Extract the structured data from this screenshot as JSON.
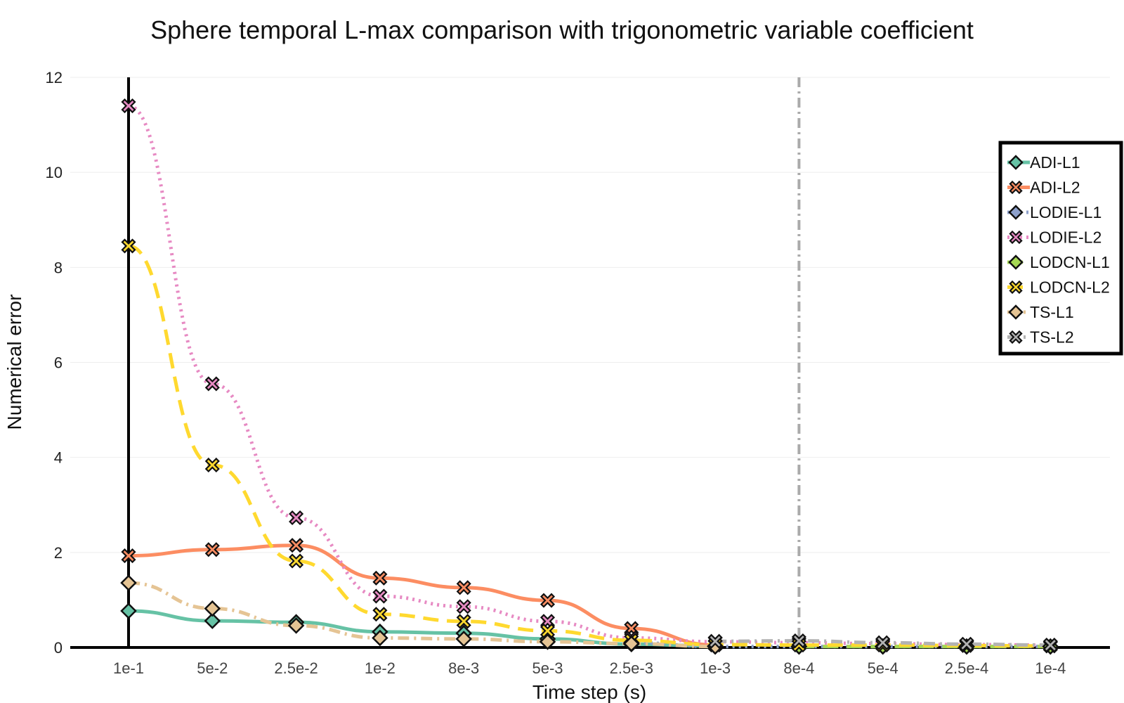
{
  "chart_data": {
    "type": "line",
    "title": "Sphere temporal L-max comparison with trigonometric variable coefficient",
    "xlabel": "Time step (s)",
    "ylabel": "Numerical error",
    "categories": [
      "1e-1",
      "5e-2",
      "2.5e-2",
      "1e-2",
      "8e-3",
      "5e-3",
      "2.5e-3",
      "1e-3",
      "8e-4",
      "5e-4",
      "2.5e-4",
      "1e-4"
    ],
    "ylim": [
      0,
      12
    ],
    "yticks": [
      "0",
      "2",
      "4",
      "6",
      "8",
      "10",
      "12"
    ],
    "grid": true,
    "legend_position": "top-right",
    "vline_category": "8e-4",
    "series": [
      {
        "name": "ADI-L1",
        "color": "#66c2a5",
        "dash": "solid",
        "marker": "diamond",
        "values": [
          0.77,
          0.56,
          0.53,
          0.33,
          0.3,
          0.18,
          0.07,
          0.03,
          null,
          null,
          null,
          null
        ]
      },
      {
        "name": "ADI-L2",
        "color": "#fc8d62",
        "dash": "solid",
        "marker": "x",
        "values": [
          1.93,
          2.06,
          2.15,
          1.46,
          1.26,
          0.99,
          0.4,
          0.05,
          null,
          null,
          null,
          null
        ]
      },
      {
        "name": "LODIE-L1",
        "color": "#8da0cb",
        "dash": "dot",
        "marker": "diamond",
        "values": [
          null,
          null,
          null,
          null,
          null,
          null,
          0.1,
          0.02,
          0.02,
          0.02,
          0.02,
          0.02
        ]
      },
      {
        "name": "LODIE-L2",
        "color": "#e78ac3",
        "dash": "dot",
        "marker": "x",
        "values": [
          11.4,
          5.55,
          2.73,
          1.08,
          0.86,
          0.55,
          0.2,
          0.12,
          0.1,
          0.08,
          0.06,
          0.05
        ]
      },
      {
        "name": "LODCN-L1",
        "color": "#a6d854",
        "dash": "dash",
        "marker": "diamond",
        "values": [
          null,
          null,
          null,
          null,
          null,
          null,
          null,
          null,
          0.02,
          0.02,
          0.02,
          0.02
        ]
      },
      {
        "name": "LODCN-L2",
        "color": "#ffd92f",
        "dash": "dash",
        "marker": "x",
        "values": [
          8.45,
          3.84,
          1.82,
          0.7,
          0.55,
          0.35,
          0.15,
          0.06,
          0.05,
          0.05,
          0.04,
          0.03
        ]
      },
      {
        "name": "TS-L1",
        "color": "#e5c494",
        "dash": "dashdot",
        "marker": "diamond",
        "values": [
          1.36,
          0.82,
          0.46,
          0.2,
          0.18,
          0.12,
          0.08,
          0.02,
          null,
          null,
          null,
          null
        ]
      },
      {
        "name": "TS-L2",
        "color": "#b3b3b3",
        "dash": "dashdot",
        "marker": "x",
        "values": [
          null,
          null,
          null,
          null,
          null,
          null,
          null,
          0.13,
          0.14,
          0.1,
          0.07,
          0.05
        ]
      }
    ]
  }
}
